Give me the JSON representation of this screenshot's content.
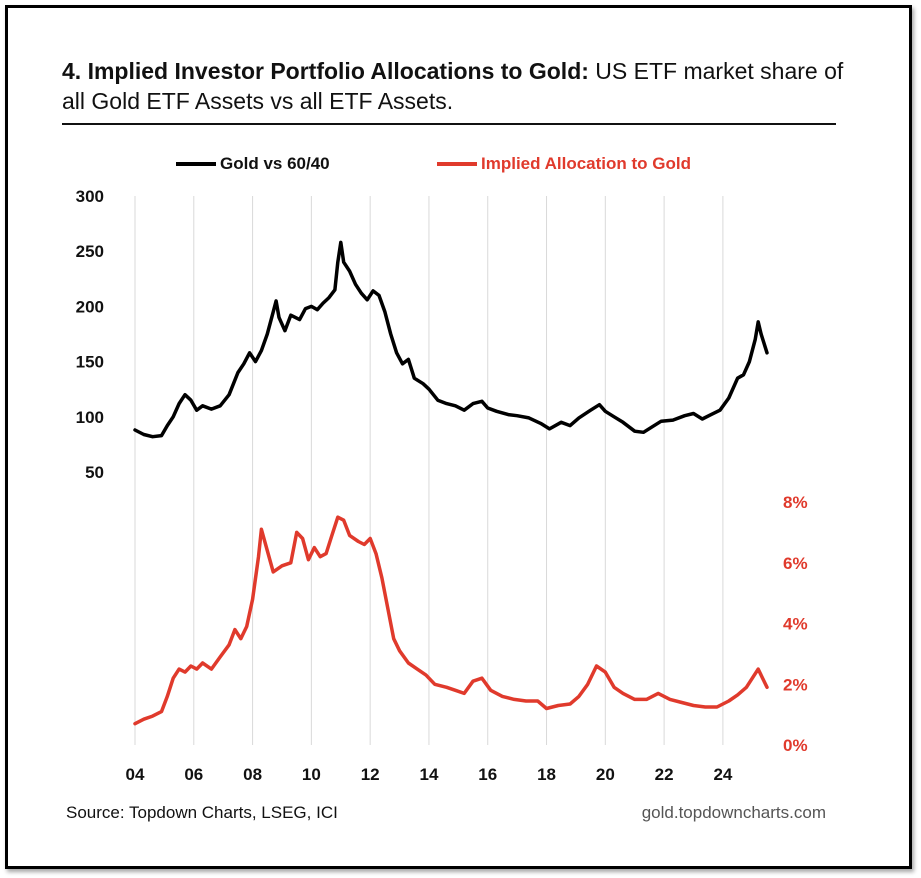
{
  "title": {
    "bold": "4. Implied Investor Portfolio Allocations to Gold:",
    "rest": " US ETF market share of all Gold ETF Assets vs all ETF Assets."
  },
  "legend": {
    "gold": "Gold vs 60/40",
    "alloc": "Implied Allocation to Gold"
  },
  "footer": {
    "source": "Source: Topdown Charts, LSEG, ICI",
    "site": "gold.topdowncharts.com"
  },
  "chart_data": {
    "type": "line",
    "x_ticks": [
      "04",
      "06",
      "08",
      "10",
      "12",
      "14",
      "16",
      "18",
      "20",
      "22",
      "24"
    ],
    "x_range": [
      2004,
      2025.5
    ],
    "left_axis": {
      "ticks": [
        "300",
        "250",
        "200",
        "150",
        "100",
        "50"
      ],
      "range": [
        50,
        300
      ]
    },
    "right_axis": {
      "ticks": [
        "8%",
        "6%",
        "4%",
        "2%",
        "0%"
      ],
      "range": [
        0,
        8
      ]
    },
    "grid": "vertical",
    "colors": {
      "gold": "#000000",
      "alloc": "#e03a2c"
    },
    "series": [
      {
        "name": "Gold vs 60/40",
        "axis": "left",
        "points": [
          [
            2004.0,
            88
          ],
          [
            2004.3,
            84
          ],
          [
            2004.6,
            82
          ],
          [
            2004.9,
            83
          ],
          [
            2005.1,
            92
          ],
          [
            2005.3,
            100
          ],
          [
            2005.5,
            112
          ],
          [
            2005.7,
            120
          ],
          [
            2005.9,
            115
          ],
          [
            2006.1,
            106
          ],
          [
            2006.3,
            110
          ],
          [
            2006.6,
            107
          ],
          [
            2006.9,
            110
          ],
          [
            2007.2,
            120
          ],
          [
            2007.5,
            140
          ],
          [
            2007.7,
            148
          ],
          [
            2007.9,
            158
          ],
          [
            2008.1,
            150
          ],
          [
            2008.3,
            160
          ],
          [
            2008.5,
            175
          ],
          [
            2008.7,
            195
          ],
          [
            2008.8,
            205
          ],
          [
            2008.9,
            190
          ],
          [
            2009.1,
            178
          ],
          [
            2009.3,
            192
          ],
          [
            2009.6,
            188
          ],
          [
            2009.8,
            198
          ],
          [
            2010.0,
            200
          ],
          [
            2010.2,
            197
          ],
          [
            2010.4,
            203
          ],
          [
            2010.6,
            208
          ],
          [
            2010.8,
            215
          ],
          [
            2010.9,
            240
          ],
          [
            2011.0,
            258
          ],
          [
            2011.1,
            240
          ],
          [
            2011.3,
            232
          ],
          [
            2011.5,
            220
          ],
          [
            2011.7,
            212
          ],
          [
            2011.9,
            206
          ],
          [
            2012.1,
            214
          ],
          [
            2012.3,
            210
          ],
          [
            2012.5,
            195
          ],
          [
            2012.7,
            175
          ],
          [
            2012.9,
            158
          ],
          [
            2013.1,
            148
          ],
          [
            2013.3,
            152
          ],
          [
            2013.5,
            135
          ],
          [
            2013.8,
            130
          ],
          [
            2014.0,
            125
          ],
          [
            2014.3,
            115
          ],
          [
            2014.6,
            112
          ],
          [
            2014.9,
            110
          ],
          [
            2015.2,
            106
          ],
          [
            2015.5,
            112
          ],
          [
            2015.8,
            114
          ],
          [
            2016.0,
            108
          ],
          [
            2016.3,
            105
          ],
          [
            2016.7,
            102
          ],
          [
            2017.0,
            101
          ],
          [
            2017.4,
            99
          ],
          [
            2017.8,
            94
          ],
          [
            2018.1,
            89
          ],
          [
            2018.5,
            95
          ],
          [
            2018.8,
            92
          ],
          [
            2019.1,
            99
          ],
          [
            2019.5,
            106
          ],
          [
            2019.8,
            111
          ],
          [
            2020.0,
            105
          ],
          [
            2020.3,
            100
          ],
          [
            2020.6,
            95
          ],
          [
            2021.0,
            87
          ],
          [
            2021.3,
            86
          ],
          [
            2021.6,
            91
          ],
          [
            2021.9,
            96
          ],
          [
            2022.3,
            97
          ],
          [
            2022.7,
            101
          ],
          [
            2023.0,
            103
          ],
          [
            2023.3,
            98
          ],
          [
            2023.6,
            102
          ],
          [
            2023.9,
            106
          ],
          [
            2024.2,
            117
          ],
          [
            2024.5,
            135
          ],
          [
            2024.7,
            138
          ],
          [
            2024.9,
            150
          ],
          [
            2025.1,
            170
          ],
          [
            2025.2,
            186
          ],
          [
            2025.3,
            175
          ],
          [
            2025.5,
            158
          ]
        ]
      },
      {
        "name": "Implied Allocation to Gold",
        "axis": "right",
        "points": [
          [
            2004.0,
            0.7
          ],
          [
            2004.3,
            0.85
          ],
          [
            2004.6,
            0.95
          ],
          [
            2004.9,
            1.1
          ],
          [
            2005.1,
            1.6
          ],
          [
            2005.3,
            2.2
          ],
          [
            2005.5,
            2.5
          ],
          [
            2005.7,
            2.4
          ],
          [
            2005.9,
            2.6
          ],
          [
            2006.1,
            2.5
          ],
          [
            2006.3,
            2.7
          ],
          [
            2006.6,
            2.5
          ],
          [
            2006.9,
            2.9
          ],
          [
            2007.2,
            3.3
          ],
          [
            2007.4,
            3.8
          ],
          [
            2007.6,
            3.5
          ],
          [
            2007.8,
            3.9
          ],
          [
            2008.0,
            4.8
          ],
          [
            2008.2,
            6.2
          ],
          [
            2008.3,
            7.1
          ],
          [
            2008.5,
            6.4
          ],
          [
            2008.7,
            5.7
          ],
          [
            2009.0,
            5.9
          ],
          [
            2009.3,
            6.0
          ],
          [
            2009.5,
            7.0
          ],
          [
            2009.7,
            6.8
          ],
          [
            2009.9,
            6.1
          ],
          [
            2010.1,
            6.5
          ],
          [
            2010.3,
            6.2
          ],
          [
            2010.5,
            6.3
          ],
          [
            2010.7,
            6.9
          ],
          [
            2010.9,
            7.5
          ],
          [
            2011.1,
            7.4
          ],
          [
            2011.3,
            6.9
          ],
          [
            2011.6,
            6.7
          ],
          [
            2011.8,
            6.6
          ],
          [
            2012.0,
            6.8
          ],
          [
            2012.2,
            6.3
          ],
          [
            2012.4,
            5.5
          ],
          [
            2012.6,
            4.5
          ],
          [
            2012.8,
            3.5
          ],
          [
            2013.0,
            3.1
          ],
          [
            2013.3,
            2.7
          ],
          [
            2013.6,
            2.5
          ],
          [
            2013.9,
            2.3
          ],
          [
            2014.2,
            2.0
          ],
          [
            2014.6,
            1.9
          ],
          [
            2014.9,
            1.8
          ],
          [
            2015.2,
            1.7
          ],
          [
            2015.5,
            2.1
          ],
          [
            2015.8,
            2.2
          ],
          [
            2016.1,
            1.8
          ],
          [
            2016.5,
            1.6
          ],
          [
            2016.9,
            1.5
          ],
          [
            2017.3,
            1.45
          ],
          [
            2017.7,
            1.45
          ],
          [
            2018.0,
            1.2
          ],
          [
            2018.4,
            1.3
          ],
          [
            2018.8,
            1.35
          ],
          [
            2019.1,
            1.6
          ],
          [
            2019.4,
            2.0
          ],
          [
            2019.7,
            2.6
          ],
          [
            2020.0,
            2.4
          ],
          [
            2020.3,
            1.9
          ],
          [
            2020.6,
            1.7
          ],
          [
            2021.0,
            1.5
          ],
          [
            2021.4,
            1.5
          ],
          [
            2021.8,
            1.7
          ],
          [
            2022.2,
            1.5
          ],
          [
            2022.6,
            1.4
          ],
          [
            2023.0,
            1.3
          ],
          [
            2023.4,
            1.25
          ],
          [
            2023.8,
            1.25
          ],
          [
            2024.2,
            1.45
          ],
          [
            2024.5,
            1.65
          ],
          [
            2024.8,
            1.9
          ],
          [
            2025.0,
            2.2
          ],
          [
            2025.2,
            2.5
          ],
          [
            2025.35,
            2.2
          ],
          [
            2025.5,
            1.9
          ]
        ]
      }
    ]
  }
}
